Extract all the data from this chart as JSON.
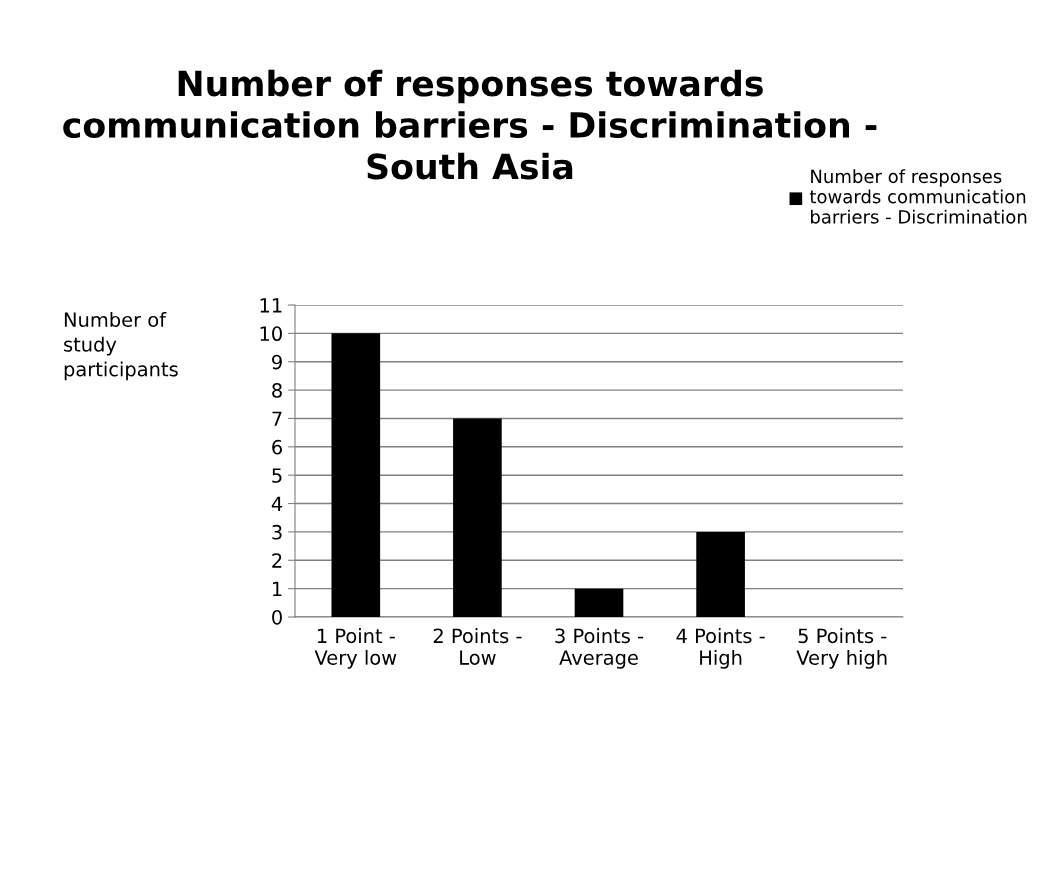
{
  "chart_data": {
    "type": "bar",
    "title": "Number of responses towards\ncommunication barriers - Discrimination -\nSouth Asia",
    "ylabel": "Number of\nstudy\nparticipants",
    "categories": [
      "1 Point -\nVery low",
      "2 Points -\nLow",
      "3 Points -\nAverage",
      "4 Points -\nHigh",
      "5 Points -\nVery high"
    ],
    "series": [
      {
        "name": "Number of responses\ntowards communication\nbarriers - Discrimination",
        "color": "#000000",
        "values": [
          10,
          7,
          1,
          3,
          0
        ]
      }
    ],
    "ylim": [
      0,
      11
    ],
    "yticks": [
      0,
      1,
      2,
      3,
      4,
      5,
      6,
      7,
      8,
      9,
      10,
      11
    ],
    "grid": "y",
    "legend": "top right"
  }
}
